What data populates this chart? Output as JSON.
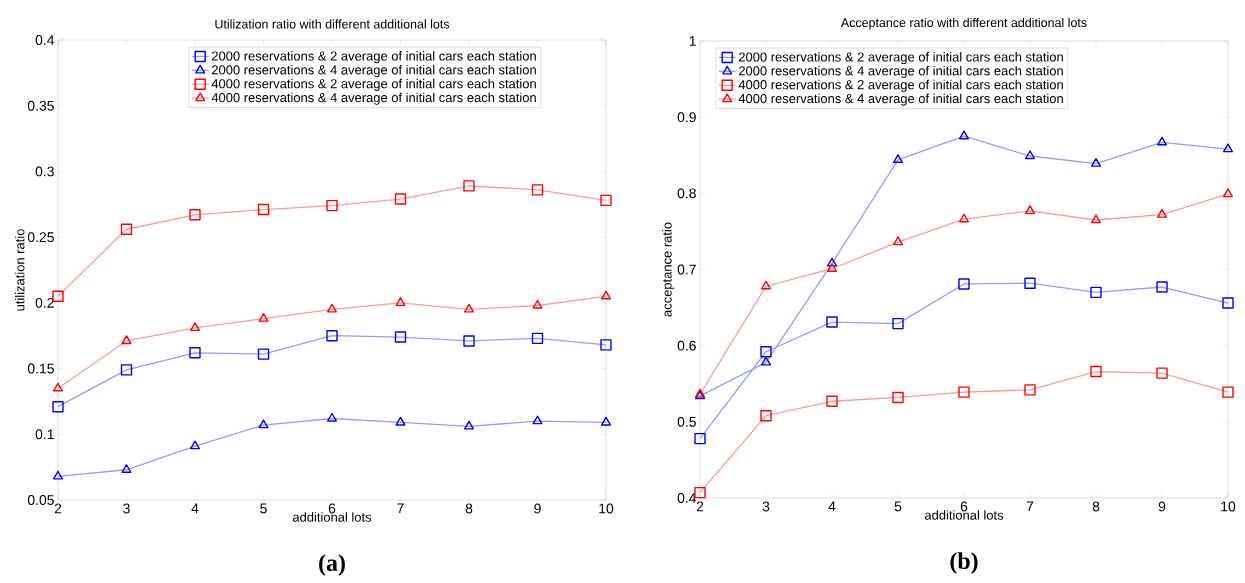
{
  "chart_data": [
    {
      "type": "line",
      "title": "Utilization ratio with different additional lots",
      "xlabel": "additional lots",
      "ylabel": "utilization ratio",
      "x": [
        2,
        3,
        4,
        5,
        6,
        7,
        8,
        9,
        10
      ],
      "xlim": [
        2,
        10
      ],
      "xticks": [
        2,
        3,
        4,
        5,
        6,
        7,
        8,
        9,
        10
      ],
      "ylim": [
        0.05,
        0.4
      ],
      "yticks": [
        0.05,
        0.1,
        0.15,
        0.2,
        0.25,
        0.3,
        0.35,
        0.4
      ],
      "legend": "top",
      "line_style": "solid",
      "annotations": [
        "(a)"
      ],
      "series": [
        {
          "name": "2000 reservations & 2 average of initial cars each station",
          "color": "#0000ff",
          "marker": "square",
          "values": [
            0.121,
            0.149,
            0.162,
            0.161,
            0.175,
            0.174,
            0.171,
            0.173,
            0.168
          ]
        },
        {
          "name": "2000 reservations & 4 average of initial cars each station",
          "color": "#0000ff",
          "marker": "triangle",
          "values": [
            0.068,
            0.073,
            0.091,
            0.107,
            0.112,
            0.109,
            0.106,
            0.11,
            0.109
          ]
        },
        {
          "name": "4000 reservations & 2 average of initial cars each station",
          "color": "#ff0000",
          "marker": "square",
          "values": [
            0.205,
            0.256,
            0.267,
            0.271,
            0.274,
            0.279,
            0.289,
            0.286,
            0.278
          ]
        },
        {
          "name": "4000 reservations & 4 average of initial cars each station",
          "color": "#ff0000",
          "marker": "triangle",
          "values": [
            0.135,
            0.171,
            0.181,
            0.188,
            0.195,
            0.2,
            0.195,
            0.198,
            0.205
          ]
        }
      ]
    },
    {
      "type": "line",
      "title": "Acceptance ratio with different additional lots",
      "xlabel": "additional lots",
      "ylabel": "acceptance ratio",
      "x": [
        2,
        3,
        4,
        5,
        6,
        7,
        8,
        9,
        10
      ],
      "xlim": [
        2,
        10
      ],
      "xticks": [
        2,
        3,
        4,
        5,
        6,
        7,
        8,
        9,
        10
      ],
      "ylim": [
        0.4,
        1
      ],
      "yticks": [
        0.4,
        0.5,
        0.6,
        0.7,
        0.8,
        0.9,
        1
      ],
      "legend": "top left",
      "line_style": "solid",
      "annotations": [
        "(b)"
      ],
      "series": [
        {
          "name": "2000 reservations & 2 average of initial cars each station",
          "color": "#0000ff",
          "marker": "square",
          "values": [
            0.478,
            0.592,
            0.631,
            0.629,
            0.681,
            0.682,
            0.67,
            0.677,
            0.656
          ]
        },
        {
          "name": "2000 reservations & 4 average of initial cars each station",
          "color": "#0000ff",
          "marker": "triangle",
          "values": [
            0.534,
            0.578,
            0.708,
            0.844,
            0.875,
            0.849,
            0.839,
            0.867,
            0.858
          ]
        },
        {
          "name": "4000 reservations & 2 average of initial cars each station",
          "color": "#ff0000",
          "marker": "square",
          "values": [
            0.407,
            0.508,
            0.527,
            0.532,
            0.539,
            0.542,
            0.566,
            0.564,
            0.539
          ]
        },
        {
          "name": "4000 reservations & 4 average of initial cars each station",
          "color": "#ff0000",
          "marker": "triangle",
          "values": [
            0.536,
            0.678,
            0.701,
            0.736,
            0.766,
            0.777,
            0.765,
            0.772,
            0.799
          ]
        }
      ]
    }
  ]
}
